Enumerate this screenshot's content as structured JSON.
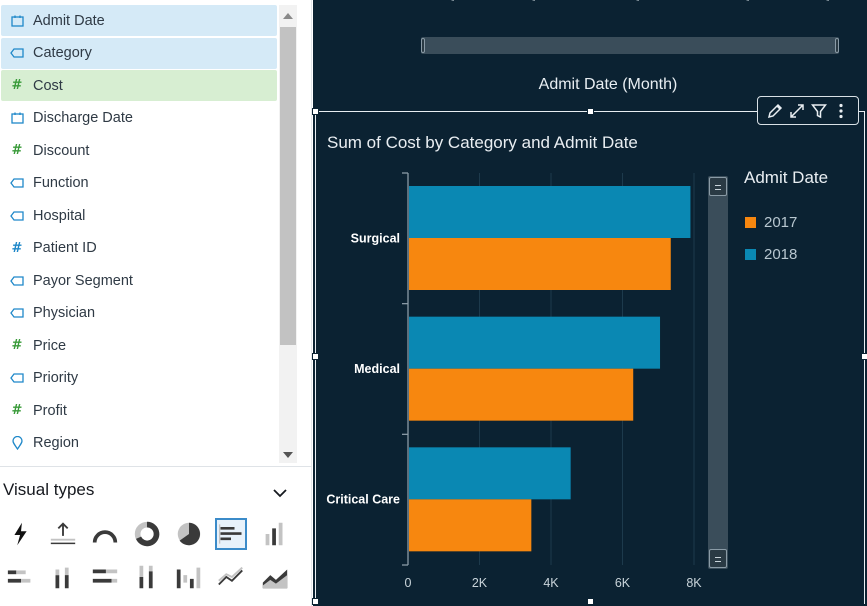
{
  "fields": [
    {
      "name": "Admit Date",
      "type": "date",
      "state": "sel-blue"
    },
    {
      "name": "Category",
      "type": "dimension",
      "state": "sel-blue"
    },
    {
      "name": "Cost",
      "type": "measure",
      "state": "sel-green"
    },
    {
      "name": "Discharge Date",
      "type": "date",
      "state": ""
    },
    {
      "name": "Discount",
      "type": "measure",
      "state": ""
    },
    {
      "name": "Function",
      "type": "dimension",
      "state": ""
    },
    {
      "name": "Hospital",
      "type": "dimension",
      "state": ""
    },
    {
      "name": "Patient ID",
      "type": "measure-blue",
      "state": ""
    },
    {
      "name": "Payor Segment",
      "type": "dimension",
      "state": ""
    },
    {
      "name": "Physician",
      "type": "dimension",
      "state": ""
    },
    {
      "name": "Price",
      "type": "measure",
      "state": ""
    },
    {
      "name": "Priority",
      "type": "dimension",
      "state": ""
    },
    {
      "name": "Profit",
      "type": "measure",
      "state": ""
    },
    {
      "name": "Region",
      "type": "geo",
      "state": ""
    }
  ],
  "visual_types": {
    "header": "Visual types",
    "items": [
      {
        "icon": "autograph-bolt-icon"
      },
      {
        "icon": "kpi-icon"
      },
      {
        "icon": "gauge-icon"
      },
      {
        "icon": "donut-chart-icon"
      },
      {
        "icon": "pie-chart-icon"
      },
      {
        "icon": "horizontal-bar-chart-icon",
        "active": true
      },
      {
        "icon": "vertical-bar-chart-icon"
      },
      {
        "icon": "horizontal-stacked-bar-icon"
      },
      {
        "icon": "vertical-stacked-bar-icon"
      },
      {
        "icon": "horizontal-100-stacked-bar-icon"
      },
      {
        "icon": "vertical-100-stacked-bar-icon"
      },
      {
        "icon": "waterfall-chart-icon"
      },
      {
        "icon": "line-chart-icon"
      },
      {
        "icon": "area-chart-icon"
      }
    ]
  },
  "top_visual": {
    "x_axis_title": "Admit Date (Month)"
  },
  "toolbar": {
    "edit": "pencil-icon",
    "expand": "expand-icon",
    "filter": "filter-icon",
    "menu": "more-vertical-icon"
  },
  "chart_data": {
    "type": "bar",
    "orientation": "horizontal",
    "title": "Sum of Cost by Category and Admit Date",
    "categories": [
      "Surgical",
      "Medical",
      "Critical Care"
    ],
    "series": [
      {
        "name": "2018",
        "color": "#0a88b3",
        "values": [
          7900,
          7050,
          4550
        ]
      },
      {
        "name": "2017",
        "color": "#f7870f",
        "values": [
          7350,
          6300,
          3450
        ]
      }
    ],
    "xlim": [
      0,
      8000
    ],
    "x_ticks": [
      "0",
      "2K",
      "4K",
      "6K",
      "8K"
    ],
    "legend": {
      "title": "Admit Date",
      "position": "right",
      "entries": [
        "2017",
        "2018"
      ]
    },
    "grid": true
  }
}
